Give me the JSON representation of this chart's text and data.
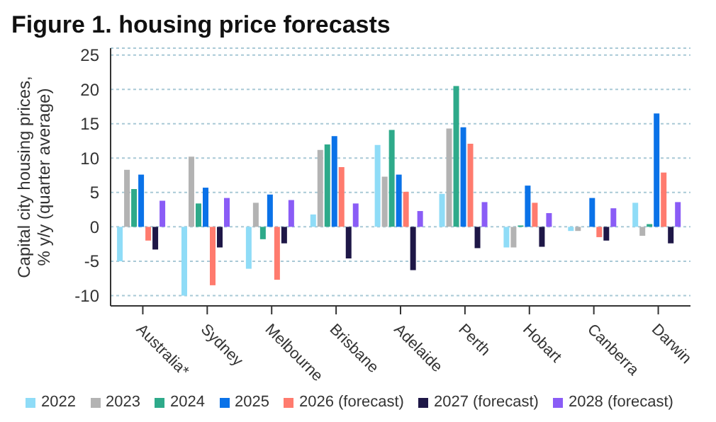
{
  "chart_data": {
    "type": "bar",
    "title": "Figure 1. housing price forecasts",
    "ylabel": "Capital city housing prices, % y/y (quarter average)",
    "categories": [
      "Australia*",
      "Sydney",
      "Melbourne",
      "Brisbane",
      "Adelaide",
      "Perth",
      "Hobart",
      "Canberra",
      "Darwin"
    ],
    "series": [
      {
        "name": "2022",
        "color": "#8fdcf7",
        "values": [
          -5,
          -10,
          -6.1,
          1.8,
          11.9,
          4.8,
          -3,
          -0.6,
          3.5
        ]
      },
      {
        "name": "2023",
        "color": "#b3b3b3",
        "values": [
          8.3,
          10.2,
          3.5,
          11.2,
          7.3,
          14.3,
          -3,
          -0.6,
          -1.3
        ]
      },
      {
        "name": "2024",
        "color": "#2eaa8a",
        "values": [
          5.5,
          3.4,
          -1.8,
          12,
          14.1,
          20.5,
          0.2,
          0,
          0.4
        ]
      },
      {
        "name": "2025",
        "color": "#0a72e8",
        "values": [
          7.6,
          5.7,
          4.7,
          13.2,
          7.6,
          14.5,
          6,
          4.2,
          16.5
        ]
      },
      {
        "name": "2026 (forecast)",
        "color": "#ff7b6e",
        "values": [
          -2,
          -8.5,
          -7.7,
          8.7,
          5.1,
          12.1,
          3.5,
          -1.5,
          7.9
        ]
      },
      {
        "name": "2027 (forecast)",
        "color": "#1e1747",
        "values": [
          -3.3,
          -3,
          -2.4,
          -4.6,
          -6.3,
          -3.1,
          -2.9,
          -2,
          -2.4
        ]
      },
      {
        "name": "2028 (forecast)",
        "color": "#8a5cf6",
        "values": [
          3.8,
          4.2,
          3.9,
          3.4,
          2.3,
          3.6,
          2,
          2.7,
          3.6
        ]
      }
    ],
    "ylim": [
      -11.5,
      26
    ],
    "yticks": [
      -10,
      -5,
      0,
      5,
      10,
      15,
      20,
      25
    ],
    "grid": "y",
    "legend": "bottom"
  }
}
